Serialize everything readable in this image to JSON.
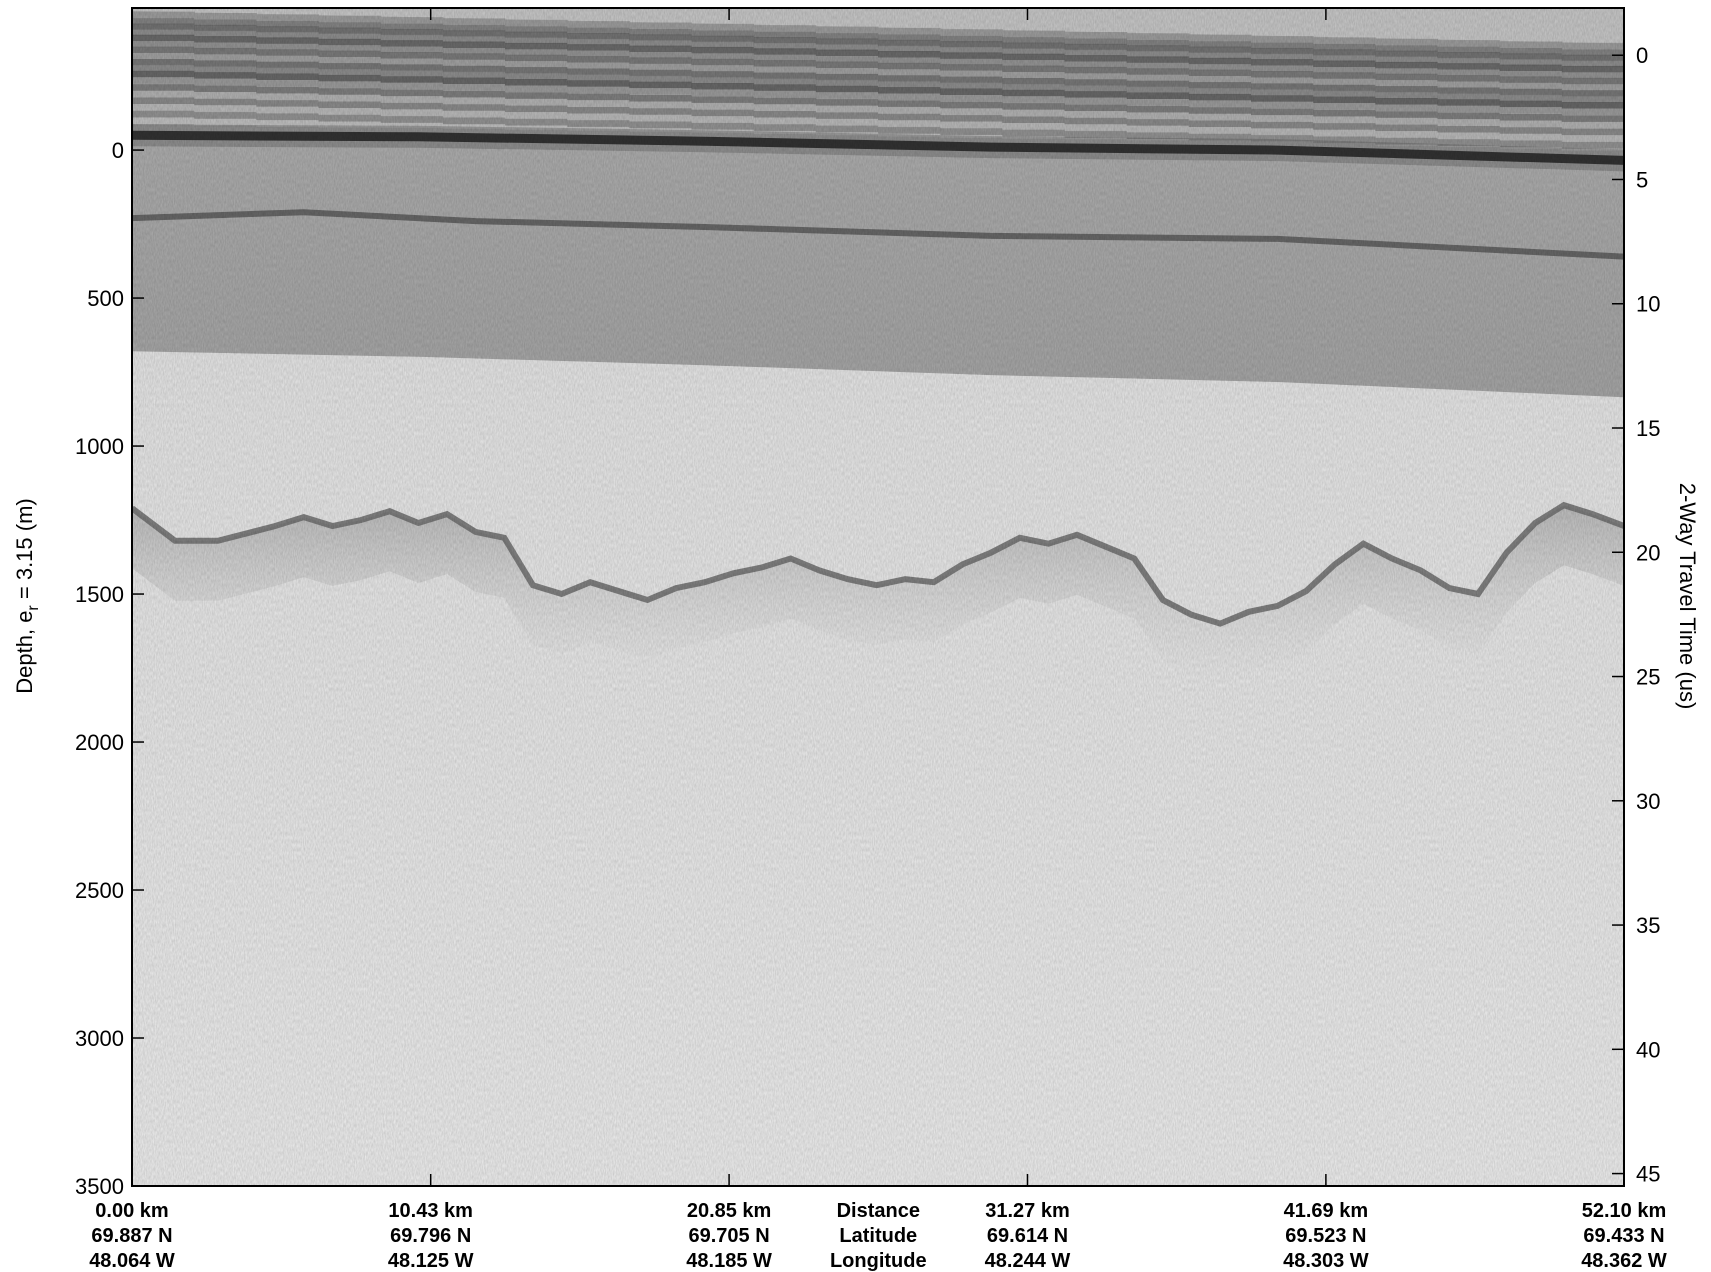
{
  "chart_data": {
    "type": "heatmap",
    "description_kind": "radar echogram",
    "colormap": "grayscale",
    "left_axis": {
      "label_prefix": "Depth, e",
      "label_sub": "r",
      "label_suffix": " = 3.15 (m)",
      "ticks": [
        0,
        500,
        1000,
        1500,
        2000,
        2500,
        3000,
        3500
      ],
      "range": [
        -480,
        3500
      ]
    },
    "right_axis": {
      "label": "2-Way Travel Time (us)",
      "ticks": [
        0,
        5,
        10,
        15,
        20,
        25,
        30,
        35,
        40,
        45
      ],
      "range": [
        -1.9,
        45.5
      ]
    },
    "bottom_axis": {
      "row_labels": [
        "Distance",
        "Latitude",
        "Longitude"
      ],
      "columns": [
        {
          "distance": "0.00 km",
          "latitude": "69.887 N",
          "longitude": "48.064 W"
        },
        {
          "distance": "10.43 km",
          "latitude": "69.796 N",
          "longitude": "48.125 W"
        },
        {
          "distance": "20.85 km",
          "latitude": "69.705 N",
          "longitude": "48.185 W"
        },
        {
          "distance": "31.27 km",
          "latitude": "69.614 N",
          "longitude": "48.244 W"
        },
        {
          "distance": "41.69 km",
          "latitude": "69.523 N",
          "longitude": "48.303 W"
        },
        {
          "distance": "52.10 km",
          "latitude": "69.433 N",
          "longitude": "48.362 W"
        }
      ],
      "x_km": [
        0,
        10.43,
        20.85,
        31.27,
        41.69,
        52.1
      ]
    },
    "layers": {
      "surface_depth_m": [
        [
          0,
          -50
        ],
        [
          10,
          -45
        ],
        [
          20,
          -30
        ],
        [
          30,
          -10
        ],
        [
          40,
          0
        ],
        [
          52.1,
          35
        ]
      ],
      "internal_layer_depth_m": [
        [
          0,
          230
        ],
        [
          6,
          210
        ],
        [
          12,
          240
        ],
        [
          20,
          260
        ],
        [
          30,
          290
        ],
        [
          40,
          300
        ],
        [
          52.1,
          360
        ]
      ],
      "bed_depth_m": [
        [
          0,
          1210
        ],
        [
          1.5,
          1320
        ],
        [
          3,
          1320
        ],
        [
          5,
          1270
        ],
        [
          6,
          1240
        ],
        [
          7,
          1270
        ],
        [
          8,
          1250
        ],
        [
          9,
          1220
        ],
        [
          10,
          1260
        ],
        [
          11,
          1230
        ],
        [
          12,
          1290
        ],
        [
          13,
          1310
        ],
        [
          14,
          1470
        ],
        [
          15,
          1500
        ],
        [
          16,
          1460
        ],
        [
          17,
          1490
        ],
        [
          18,
          1520
        ],
        [
          19,
          1480
        ],
        [
          20,
          1460
        ],
        [
          21,
          1430
        ],
        [
          22,
          1410
        ],
        [
          23,
          1380
        ],
        [
          24,
          1420
        ],
        [
          25,
          1450
        ],
        [
          26,
          1470
        ],
        [
          27,
          1450
        ],
        [
          28,
          1460
        ],
        [
          29,
          1400
        ],
        [
          30,
          1360
        ],
        [
          31,
          1310
        ],
        [
          32,
          1330
        ],
        [
          33,
          1300
        ],
        [
          34,
          1340
        ],
        [
          35,
          1380
        ],
        [
          36,
          1520
        ],
        [
          37,
          1570
        ],
        [
          38,
          1600
        ],
        [
          39,
          1560
        ],
        [
          40,
          1540
        ],
        [
          41,
          1490
        ],
        [
          42,
          1400
        ],
        [
          43,
          1330
        ],
        [
          44,
          1380
        ],
        [
          45,
          1420
        ],
        [
          46,
          1480
        ],
        [
          47,
          1500
        ],
        [
          48,
          1360
        ],
        [
          49,
          1260
        ],
        [
          50,
          1200
        ],
        [
          51,
          1230
        ],
        [
          52.1,
          1270
        ]
      ]
    }
  }
}
